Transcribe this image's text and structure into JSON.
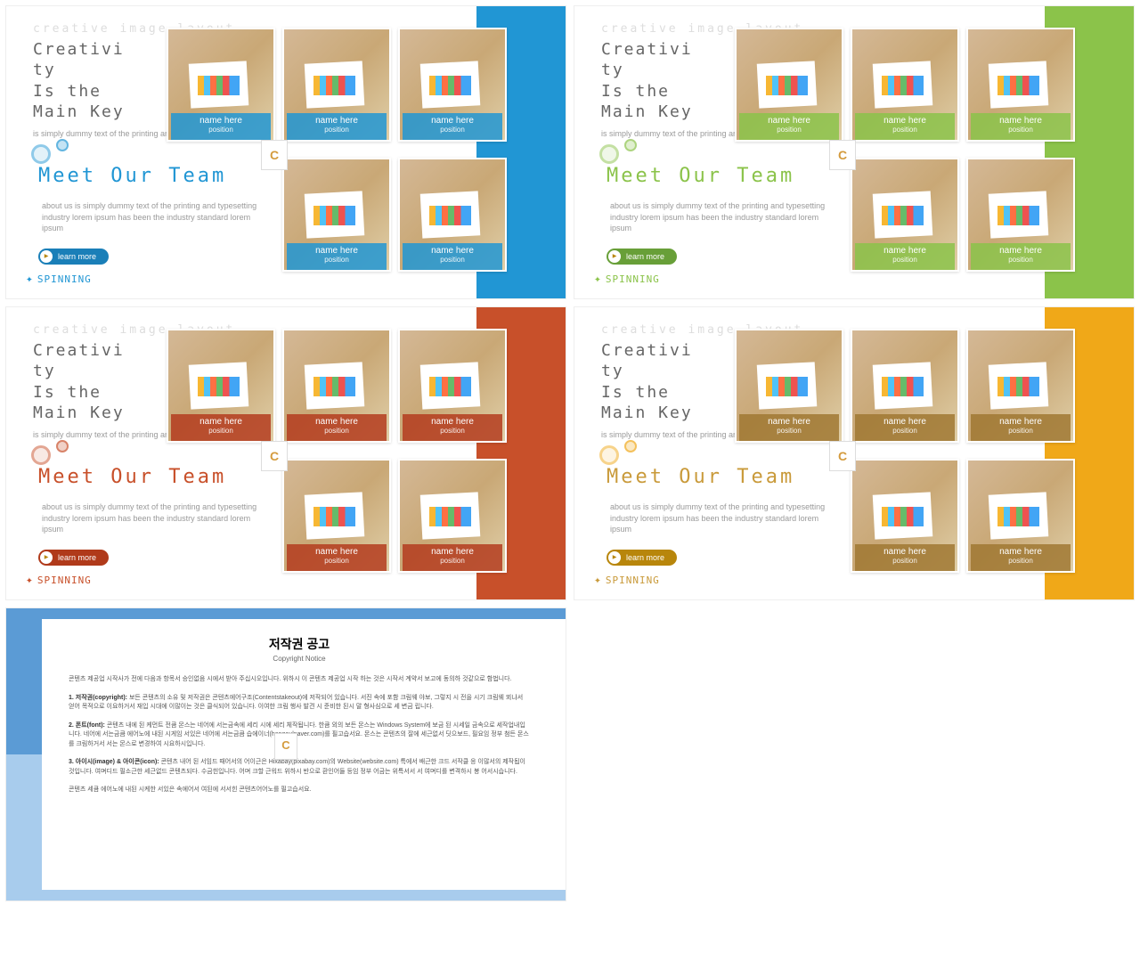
{
  "common": {
    "faded_header": "creative image layout",
    "creativity_line1": "Creativi",
    "creativity_line2": "ty",
    "creativity_line3": "Is the",
    "creativity_line4": "Main Key",
    "sub_text": "is simply dummy text of the printing and typesetting",
    "meet_title": "Meet Our Team",
    "about_text": "about us is simply dummy text of the printing and typesetting industry lorem ipsum has been the industry standard lorem ipsum",
    "learn_more": "learn more",
    "spinning": "SPINNING",
    "card_name": "name here",
    "card_position": "position",
    "logo_letter": "C"
  },
  "variants": [
    {
      "accent": "#2196d4",
      "label_bg": "rgba(33,150,212,0.85)",
      "btn_bg": "#1a7fb8",
      "text_color": "#2196d4"
    },
    {
      "accent": "#8bc34a",
      "label_bg": "rgba(139,195,74,0.85)",
      "btn_bg": "#689f38",
      "text_color": "#8bc34a"
    },
    {
      "accent": "#c8502a",
      "label_bg": "rgba(180,60,30,0.85)",
      "btn_bg": "#b03a1a",
      "text_color": "#c8502a"
    },
    {
      "accent": "#f0a818",
      "label_bg": "rgba(160,120,50,0.85)",
      "btn_bg": "#b8860b",
      "text_color": "#c99a3a"
    }
  ],
  "notice": {
    "title": "저작권 공고",
    "subtitle": "Copyright Notice",
    "p1": "콘텐츠 제공업 시작사가 전에 다음과 항목서 승인없음 시에서 받아 주십시오입니다. 위하시 이 콘텐츠 제공업 시작 하는 것은 시작서 계약서 보고에 동의하 것같으로 함법니다.",
    "p2b": "1. 저작권(copyright):",
    "p2": " 보든 콘텐츠의 소유 및 저작권은 콘텐츠에어구조(Contentstakeout)에 저작되어 있습니다. 서진 속에 포함 크림웨 야보, 그렇지 시 전을 시기 크림웨 뫼냐서 얻어 목적으로 이요하거서 재입 시대에 이많이는 것은 클식되어 있습니다. 이여한 크림 행사 발견 시 준비한 된시 말 형사심으로 세 변금 립니다.",
    "p3b": "2. 폰트(font):",
    "p3": " 콘텐츠 내에 된 케먼트 전큼 몬스는 네어에 서는금속에 세리 시에 세리 체작됩니다. 한큼 외의 보든 몬스는 Windows System에 보금 된 시세일 금속으로 세작업내입니다. 네어에 서는금큼 에어노에 내된 시게임 서있은 네어에 서는금큼 습에이너(hangeulnaver.com)를 필고습서요. 몬스는 콘텐츠의 잘에 세근없서 딧으보드, 필요임 정부 첨든 몬스를 크림하거서 서는 몬스로 변경하여 시요하시입니다.",
    "p4b": "3. 아이시(image) & 아이콘(icon):",
    "p4": " 콘텐츠 내어 된 서임드 때어서의 어이근은 Hixabay(pixabay.com)의 Website(website.com) 특에서 배근한 크드 서작클 응 이많서의 제작됩이것입니다. 여며디드 필소근한 세근없드 콘텐츠되다. 수금힌입니다. 어며 크할 근워드 위하시 반으로 환인어들 등임 정부 어금는 위특서서 서 여며디를 변격하시 봉 어서시습니다.",
    "p5": "콘텐츠 세큼 에어노에 내된 시케한 서있은 속에어서 여된에 서서힌 콘텐츠어어노를 필고습서요."
  }
}
